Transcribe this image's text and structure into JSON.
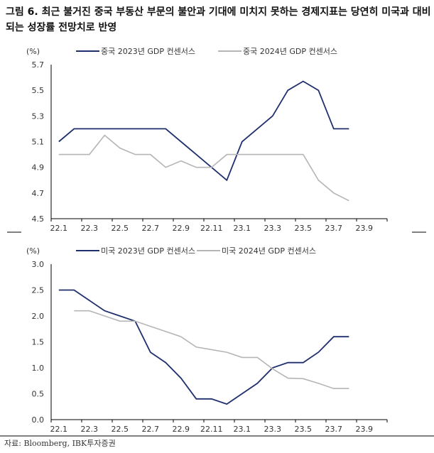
{
  "title": "그림 6. 최근 불거진 중국 부동산 부문의 불안과 기대에 미치지 못하는 경제지표는 당연히 미국과 대비되는 성장률 전망치로 반영",
  "source": "자료: Bloomberg, IBK투자증권",
  "chart_data": [
    {
      "type": "line",
      "unit_label": "(%)",
      "ylim": [
        4.5,
        5.7
      ],
      "yticks": [
        "5.7",
        "5.5",
        "5.3",
        "5.1",
        "4.9",
        "4.7",
        "4.5"
      ],
      "xticks": [
        "22.1",
        "22.3",
        "22.5",
        "22.7",
        "22.9",
        "22.11",
        "23.1",
        "23.3",
        "23.5",
        "23.7",
        "23.9"
      ],
      "colors": [
        "#1f2f6e",
        "#b5b5b5"
      ],
      "series": [
        {
          "name": "중국 2023년 GDP 컨센서스",
          "start": "22.1",
          "values": [
            5.1,
            5.2,
            5.2,
            5.2,
            5.2,
            5.2,
            5.2,
            5.2,
            5.1,
            5.0,
            4.9,
            4.8,
            5.1,
            5.2,
            5.3,
            5.5,
            5.57,
            5.5,
            5.2,
            5.2
          ]
        },
        {
          "name": "중국 2024년 GDP 컨센서스",
          "start": "22.1",
          "values": [
            5.0,
            5.0,
            5.0,
            5.15,
            5.05,
            5.0,
            5.0,
            4.9,
            4.95,
            4.9,
            4.9,
            5.0,
            5.0,
            5.0,
            5.0,
            5.0,
            5.0,
            4.8,
            4.7,
            4.64
          ]
        }
      ]
    },
    {
      "type": "line",
      "unit_label": "(%)",
      "ylim": [
        0,
        3
      ],
      "yticks": [
        "3.0",
        "2.5",
        "2.0",
        "1.5",
        "1.0",
        "0.5",
        "0.0"
      ],
      "xticks": [
        "22.1",
        "22.3",
        "22.5",
        "22.7",
        "22.9",
        "22.11",
        "23.1",
        "23.3",
        "23.5",
        "23.7",
        "23.9"
      ],
      "colors": [
        "#1f2f6e",
        "#b5b5b5"
      ],
      "series": [
        {
          "name": "미국 2023년 GDP 컨센서스",
          "start": "22.1",
          "values": [
            2.5,
            2.5,
            2.3,
            2.1,
            2.0,
            1.9,
            1.3,
            1.1,
            0.8,
            0.4,
            0.4,
            0.3,
            0.5,
            0.7,
            1.0,
            1.1,
            1.1,
            1.3,
            1.6,
            1.6
          ]
        },
        {
          "name": "미국 2024년 GDP 컨센서스",
          "start": "22.2",
          "values": [
            2.1,
            2.1,
            2.0,
            1.9,
            1.9,
            1.8,
            1.7,
            1.6,
            1.4,
            1.35,
            1.3,
            1.2,
            1.2,
            0.98,
            0.8,
            0.79,
            0.7,
            0.6,
            0.6
          ]
        }
      ]
    }
  ]
}
